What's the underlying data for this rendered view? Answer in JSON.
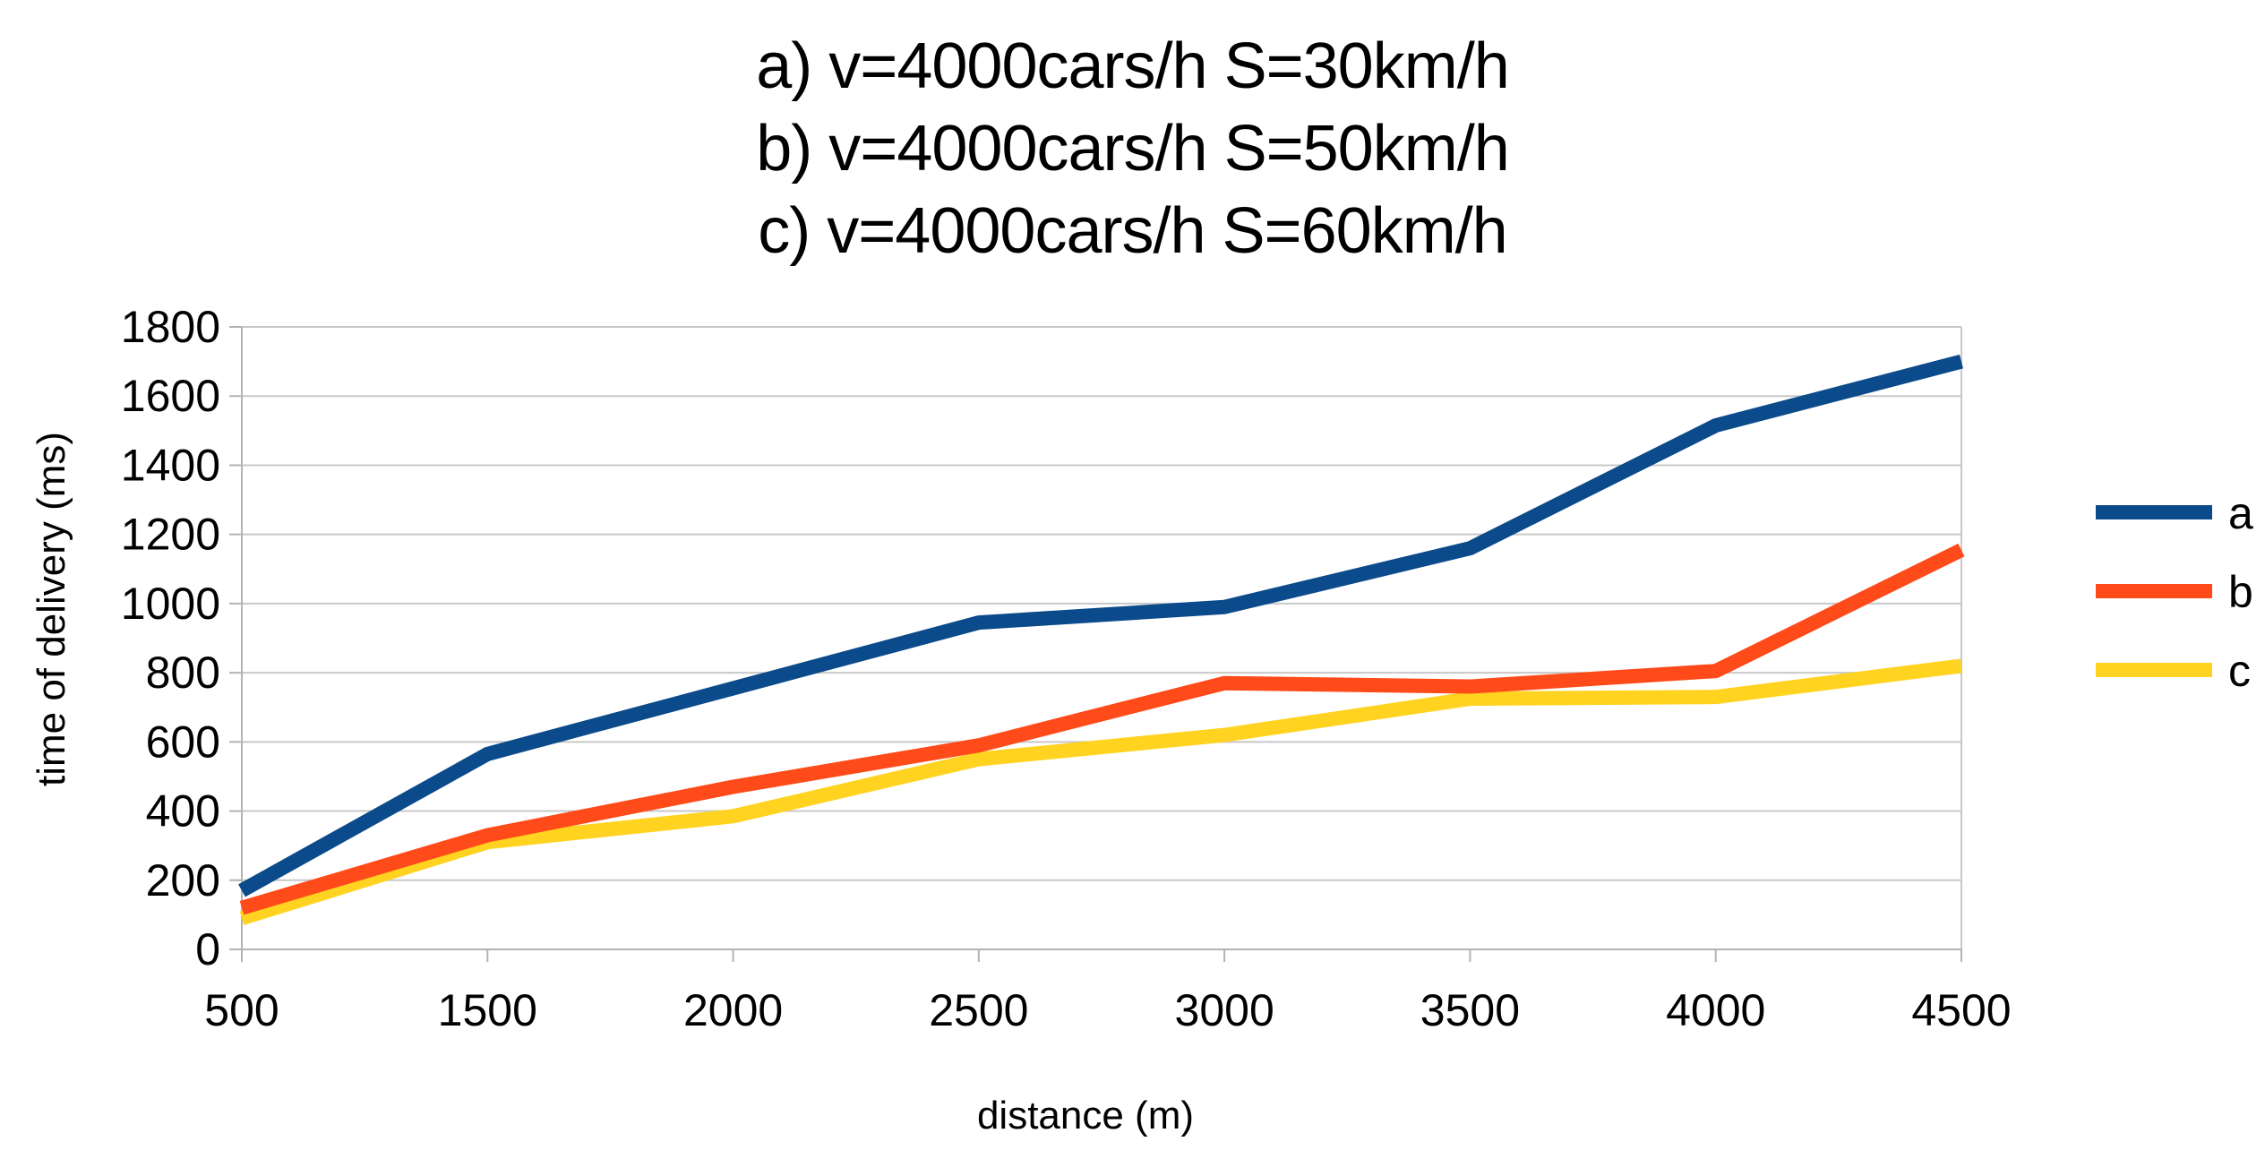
{
  "chart_data": {
    "type": "line",
    "title_lines": [
      "a) v=4000cars/h S=30km/h",
      "b) v=4000cars/h S=50km/h",
      "c) v=4000cars/h S=60km/h"
    ],
    "xlabel": "distance (m)",
    "ylabel": "time of delivery (ms)",
    "categories": [
      "500",
      "1500",
      "2000",
      "2500",
      "3000",
      "3500",
      "4000",
      "4500"
    ],
    "ylim": [
      0,
      1800
    ],
    "yticks": [
      0,
      200,
      400,
      600,
      800,
      1000,
      1200,
      1400,
      1600,
      1800
    ],
    "grid": true,
    "legend_position": "right",
    "series": [
      {
        "name": "a",
        "color": "#0b4a8b",
        "values": [
          170,
          565,
          755,
          945,
          990,
          1160,
          1515,
          1700
        ]
      },
      {
        "name": "b",
        "color": "#ff4a1a",
        "values": [
          120,
          330,
          470,
          590,
          770,
          760,
          805,
          1155
        ]
      },
      {
        "name": "c",
        "color": "#ffd320",
        "values": [
          90,
          310,
          385,
          550,
          620,
          725,
          730,
          820
        ]
      }
    ]
  }
}
